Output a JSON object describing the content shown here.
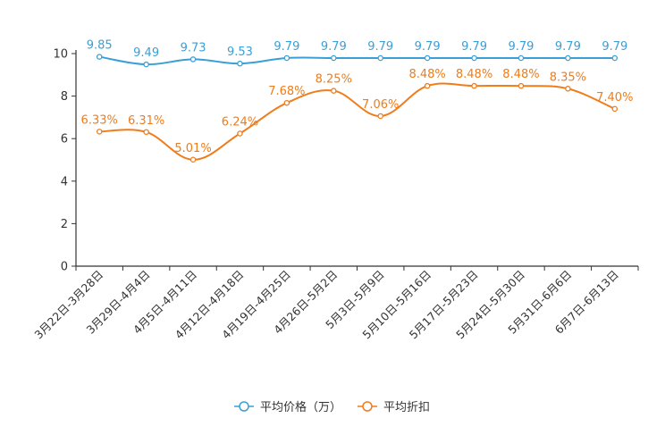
{
  "chart_data": {
    "type": "line",
    "categories": [
      "3月22日-3月28日",
      "3月29日-4月4日",
      "4月5日-4月11日",
      "4月12日-4月18日",
      "4月19日-4月25日",
      "4月26日-5月2日",
      "5月3日-5月9日",
      "5月10日-5月16日",
      "5月17日-5月23日",
      "5月24日-5月30日",
      "5月31日-6月6日",
      "6月7日-6月13日"
    ],
    "yticks": [
      0,
      2,
      4,
      6,
      8,
      10
    ],
    "ylim": [
      0,
      10
    ],
    "series": [
      {
        "name": "平均价格（万）",
        "color": "#3a9fd6",
        "values": [
          9.85,
          9.49,
          9.73,
          9.53,
          9.79,
          9.79,
          9.79,
          9.79,
          9.79,
          9.79,
          9.79,
          9.79
        ],
        "labels": [
          "9.85",
          "9.49",
          "9.73",
          "9.53",
          "9.79",
          "9.79",
          "9.79",
          "9.79",
          "9.79",
          "9.79",
          "9.79",
          "9.79"
        ]
      },
      {
        "name": "平均折扣",
        "color": "#f07c1a",
        "values": [
          6.33,
          6.31,
          5.01,
          6.24,
          7.68,
          8.25,
          7.06,
          8.48,
          8.48,
          8.48,
          8.35,
          7.4
        ],
        "labels": [
          "6.33%",
          "6.31%",
          "5.01%",
          "6.24%",
          "7.68%",
          "8.25%",
          "7.06%",
          "8.48%",
          "8.48%",
          "8.48%",
          "8.35%",
          "7.40%"
        ]
      }
    ],
    "legend_position": "bottom-center",
    "grid": false
  }
}
